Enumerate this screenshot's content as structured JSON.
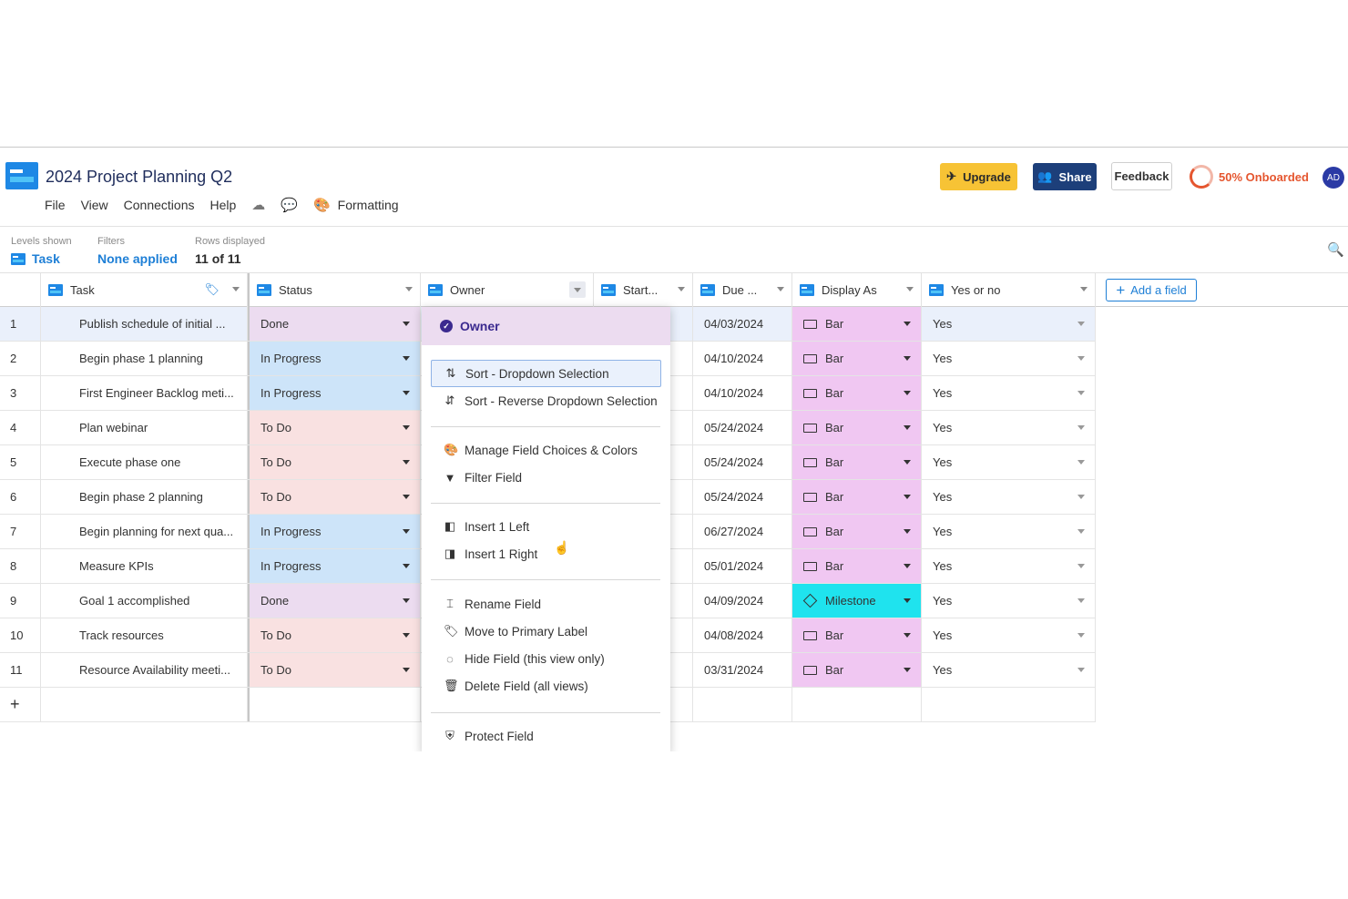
{
  "app": {
    "title": "2024 Project Planning Q2",
    "menu": [
      "File",
      "View",
      "Connections",
      "Help"
    ],
    "formatting_label": "Formatting",
    "upgrade_label": "Upgrade",
    "share_label": "Share",
    "feedback_label": "Feedback",
    "onboard_label": "50% Onboarded",
    "onboard_progress": 0.5,
    "avatar_initials": "AD"
  },
  "meta": {
    "levels_label": "Levels shown",
    "levels_value": "Task",
    "filters_label": "Filters",
    "filters_value": "None applied",
    "rows_label": "Rows displayed",
    "rows_value": "11 of 11"
  },
  "columns": {
    "task": "Task",
    "status": "Status",
    "owner": "Owner",
    "start": "Start...",
    "due": "Due ...",
    "display": "Display As",
    "yesno": "Yes or no",
    "add_field": "Add a field"
  },
  "rows": [
    {
      "n": "1",
      "task": "Publish schedule of initial ...",
      "status": "Done",
      "due": "04/03/2024",
      "display": "Bar",
      "yes": "Yes"
    },
    {
      "n": "2",
      "task": "Begin phase 1 planning",
      "status": "In Progress",
      "due": "04/10/2024",
      "display": "Bar",
      "yes": "Yes"
    },
    {
      "n": "3",
      "task": "First Engineer Backlog meti...",
      "status": "In Progress",
      "due": "04/10/2024",
      "display": "Bar",
      "yes": "Yes"
    },
    {
      "n": "4",
      "task": "Plan webinar",
      "status": "To Do",
      "due": "05/24/2024",
      "display": "Bar",
      "yes": "Yes"
    },
    {
      "n": "5",
      "task": "Execute phase one",
      "status": "To Do",
      "due": "05/24/2024",
      "display": "Bar",
      "yes": "Yes"
    },
    {
      "n": "6",
      "task": "Begin phase 2 planning",
      "status": "To Do",
      "due": "05/24/2024",
      "display": "Bar",
      "yes": "Yes"
    },
    {
      "n": "7",
      "task": "Begin planning for next qua...",
      "status": "In Progress",
      "due": "06/27/2024",
      "display": "Bar",
      "yes": "Yes"
    },
    {
      "n": "8",
      "task": "Measure KPIs",
      "status": "In Progress",
      "due": "05/01/2024",
      "display": "Bar",
      "yes": "Yes"
    },
    {
      "n": "9",
      "task": "Goal 1 accomplished",
      "status": "Done",
      "due": "04/09/2024",
      "display": "Milestone",
      "yes": "Yes"
    },
    {
      "n": "10",
      "task": "Track resources",
      "status": "To Do",
      "due": "04/08/2024",
      "display": "Bar",
      "yes": "Yes"
    },
    {
      "n": "11",
      "task": "Resource Availability meeti...",
      "status": "To Do",
      "due": "03/31/2024",
      "display": "Bar",
      "yes": "Yes"
    }
  ],
  "add_row_label": "+",
  "dropdown": {
    "header": "Owner",
    "items": [
      {
        "label": "Sort - Dropdown Selection",
        "icon": "sort-asc-icon"
      },
      {
        "label": "Sort - Reverse Dropdown Selection",
        "icon": "sort-desc-icon"
      },
      {
        "label": "Manage Field Choices & Colors",
        "icon": "palette-icon"
      },
      {
        "label": "Filter Field",
        "icon": "filter-icon"
      },
      {
        "label": "Insert 1 Left",
        "icon": "insert-left-icon"
      },
      {
        "label": "Insert 1 Right",
        "icon": "insert-right-icon"
      },
      {
        "label": "Rename Field",
        "icon": "rename-icon"
      },
      {
        "label": "Move to Primary Label",
        "icon": "tag-icon"
      },
      {
        "label": "Hide Field (this view only)",
        "icon": "eye-off-icon"
      },
      {
        "label": "Delete Field (all views)",
        "icon": "trash-icon"
      },
      {
        "label": "Protect Field",
        "icon": "shield-icon"
      }
    ]
  },
  "colors": {
    "accent": "#1e7fd6",
    "done": "#ecdcf0",
    "in_progress": "#cde4f9",
    "todo": "#f9e1e1",
    "bar": "#f0c7f2",
    "milestone": "#1fe3ee"
  }
}
